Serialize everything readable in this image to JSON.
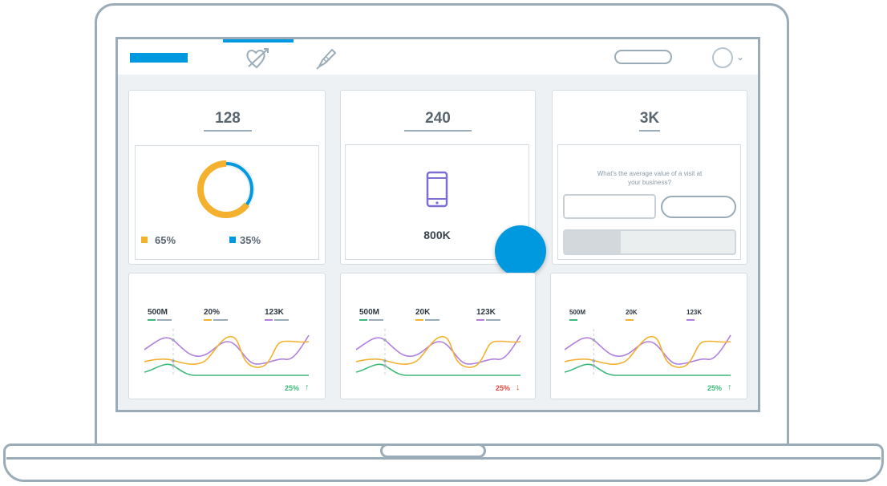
{
  "colors": {
    "accent": "#0099e0",
    "orange": "#f3b12e",
    "purple": "#b07fe0",
    "green": "#3cb878",
    "red": "#e0463c",
    "frame": "#9aacb8"
  },
  "nav": {
    "icons": [
      "heart-arrow-icon",
      "pen-icon"
    ]
  },
  "cards": {
    "donut": {
      "stat": "128",
      "legend": [
        {
          "label": "65%",
          "color": "#f3b12e"
        },
        {
          "label": "35%",
          "color": "#0099e0"
        }
      ],
      "share": [
        0.65,
        0.35
      ]
    },
    "device": {
      "stat": "240",
      "value": "800K",
      "icon": "smartphone-icon"
    },
    "calculator": {
      "stat": "3K",
      "question": "What's the average value of a visit at your business?",
      "progress": 0.33
    }
  },
  "metrics": [
    {
      "values": [
        "500M",
        "20%",
        "123K"
      ],
      "trend": "25%",
      "direction": "up",
      "trend_color": "#3cb878"
    },
    {
      "values": [
        "500M",
        "20K",
        "123K"
      ],
      "trend": "25%",
      "direction": "down",
      "trend_color": "#e0463c"
    },
    {
      "values": [
        "500M",
        "20K",
        "123K"
      ],
      "trend": "25%",
      "direction": "up",
      "trend_color": "#3cb878"
    }
  ]
}
